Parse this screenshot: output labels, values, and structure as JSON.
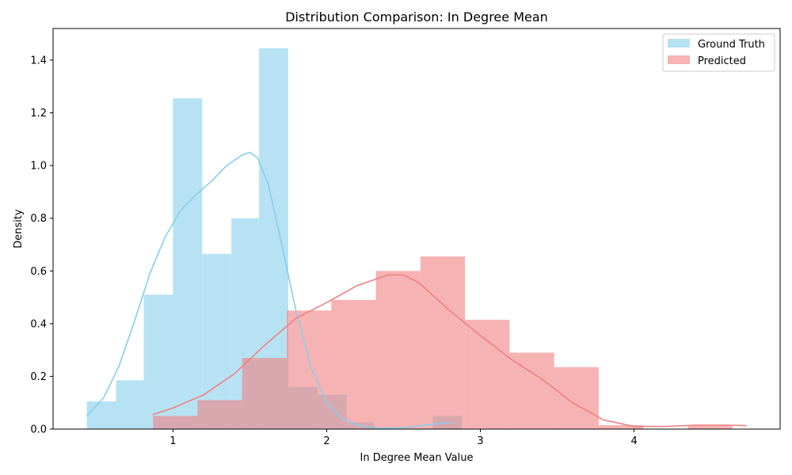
{
  "chart_data": {
    "type": "histogram",
    "title": "Distribution Comparison: In Degree Mean",
    "xlabel": "In Degree Mean Value",
    "ylabel": "Density",
    "xlim": [
      0.22,
      4.95
    ],
    "ylim": [
      0,
      1.52
    ],
    "xticks": [
      1,
      2,
      3,
      4
    ],
    "yticks": [
      0.0,
      0.2,
      0.4,
      0.6,
      0.8,
      1.0,
      1.2,
      1.4
    ],
    "ytick_labels": [
      "0.0",
      "0.2",
      "0.4",
      "0.6",
      "0.8",
      "1.0",
      "1.2",
      "1.4"
    ],
    "grid": false,
    "legend_position": "top-right",
    "series": [
      {
        "name": "Ground Truth",
        "color": "#87ceeb",
        "line_color": "#87ceeb",
        "bin_edges": [
          0.44,
          0.63,
          0.81,
          1.0,
          1.19,
          1.38,
          1.56,
          1.75,
          1.94,
          2.13,
          2.31,
          2.5,
          2.69,
          2.88
        ],
        "densities": [
          0.105,
          0.185,
          0.51,
          1.255,
          0.665,
          0.8,
          1.445,
          0.16,
          0.13,
          0.025,
          0.0,
          0.0,
          0.05
        ],
        "kde": {
          "x": [
            0.44,
            0.55,
            0.65,
            0.75,
            0.85,
            0.95,
            1.05,
            1.15,
            1.25,
            1.35,
            1.45,
            1.5,
            1.55,
            1.62,
            1.7,
            1.8,
            1.9,
            2.0,
            2.1,
            2.2,
            2.3,
            2.4,
            2.5,
            2.6,
            2.7,
            2.8
          ],
          "y": [
            0.05,
            0.12,
            0.24,
            0.41,
            0.59,
            0.73,
            0.83,
            0.89,
            0.94,
            1.0,
            1.04,
            1.05,
            1.03,
            0.93,
            0.72,
            0.45,
            0.23,
            0.1,
            0.04,
            0.015,
            0.005,
            0.003,
            0.005,
            0.012,
            0.02,
            0.025
          ]
        }
      },
      {
        "name": "Predicted",
        "color": "#f08080",
        "line_color": "#f08080",
        "bin_edges": [
          0.87,
          1.16,
          1.45,
          1.74,
          2.03,
          2.32,
          2.61,
          2.9,
          3.19,
          3.48,
          3.77,
          4.06,
          4.35,
          4.64
        ],
        "densities": [
          0.05,
          0.11,
          0.27,
          0.45,
          0.49,
          0.6,
          0.655,
          0.415,
          0.29,
          0.235,
          0.015,
          0.0,
          0.015
        ],
        "kde": {
          "x": [
            0.87,
            1.0,
            1.2,
            1.4,
            1.6,
            1.8,
            2.0,
            2.2,
            2.4,
            2.5,
            2.6,
            2.8,
            3.0,
            3.2,
            3.4,
            3.6,
            3.8,
            4.0,
            4.2,
            4.4,
            4.6,
            4.73
          ],
          "y": [
            0.055,
            0.08,
            0.13,
            0.21,
            0.32,
            0.42,
            0.48,
            0.545,
            0.585,
            0.585,
            0.555,
            0.45,
            0.355,
            0.265,
            0.19,
            0.1,
            0.035,
            0.01,
            0.01,
            0.015,
            0.015,
            0.013
          ]
        }
      }
    ]
  }
}
